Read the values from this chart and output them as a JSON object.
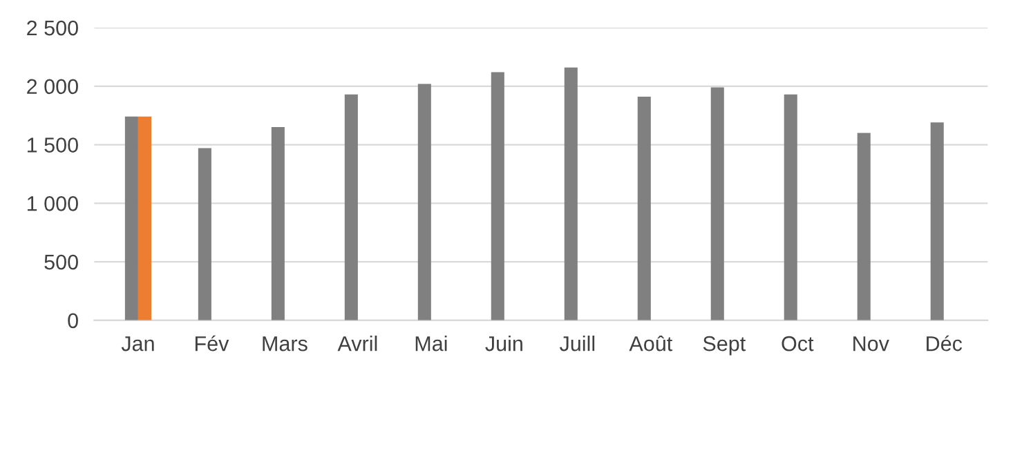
{
  "chart_data": {
    "type": "bar",
    "categories": [
      "Jan",
      "Fév",
      "Mars",
      "Avril",
      "Mai",
      "Juin",
      "Juill",
      "Août",
      "Sept",
      "Oct",
      "Nov",
      "Déc"
    ],
    "series": [
      {
        "color": "#808080",
        "values": [
          1740,
          1470,
          1650,
          1930,
          2020,
          2120,
          2160,
          1910,
          1990,
          1930,
          1600,
          1690
        ]
      },
      {
        "color": "#ed7d31",
        "values": [
          1740,
          null,
          null,
          null,
          null,
          null,
          null,
          null,
          null,
          null,
          null,
          null
        ]
      }
    ],
    "ylim": [
      0,
      2500
    ],
    "yticks": [
      0,
      500,
      {
        "value": 1000,
        "label": "1 000"
      },
      {
        "value": 1500,
        "label": "1 500"
      },
      {
        "value": 2000,
        "label": "2 000"
      },
      {
        "value": 2500,
        "label": "2 500"
      }
    ],
    "grid": "y",
    "legend": false
  }
}
